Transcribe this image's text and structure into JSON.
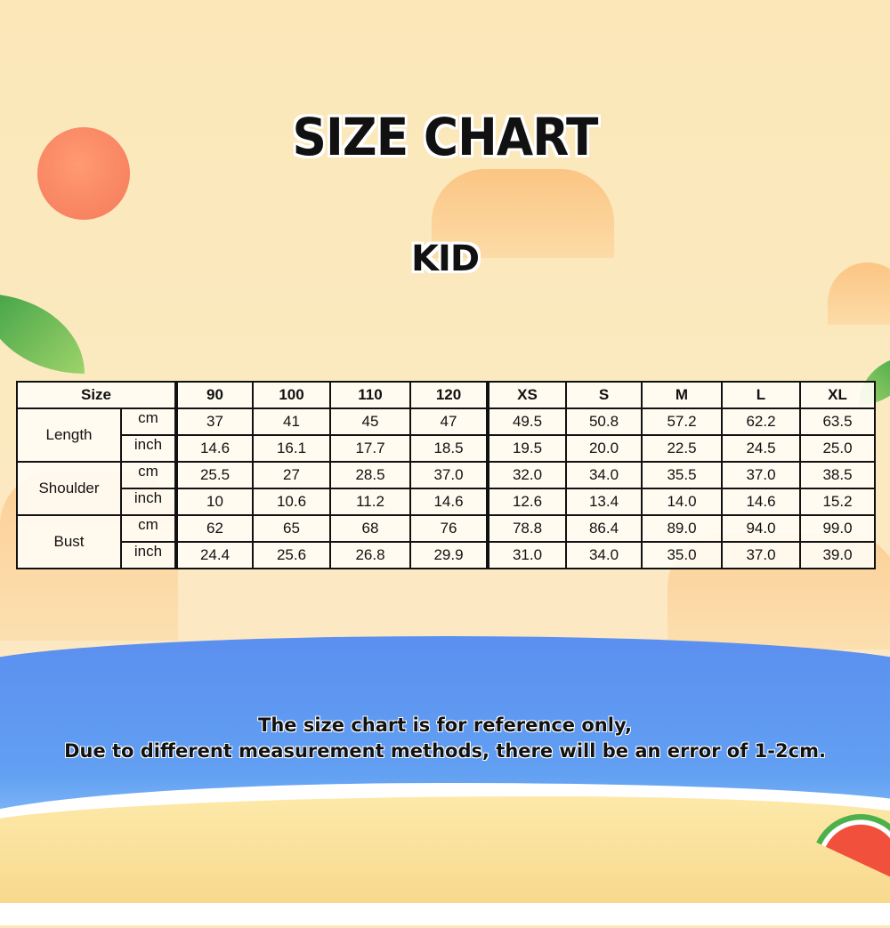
{
  "title": "SIZE CHART",
  "subtitle": "KID",
  "table": {
    "size_header": "Size",
    "sizes": [
      "90",
      "100",
      "110",
      "120",
      "XS",
      "S",
      "M",
      "L",
      "XL"
    ],
    "rows": [
      {
        "measure": "Length",
        "unit": "cm",
        "values": [
          "37",
          "41",
          "45",
          "47",
          "49.5",
          "50.8",
          "57.2",
          "62.2",
          "63.5"
        ]
      },
      {
        "measure": "Length",
        "unit": "inch",
        "values": [
          "14.6",
          "16.1",
          "17.7",
          "18.5",
          "19.5",
          "20.0",
          "22.5",
          "24.5",
          "25.0"
        ]
      },
      {
        "measure": "Shoulder",
        "unit": "cm",
        "values": [
          "25.5",
          "27",
          "28.5",
          "37.0",
          "32.0",
          "34.0",
          "35.5",
          "37.0",
          "38.5"
        ]
      },
      {
        "measure": "Shoulder",
        "unit": "inch",
        "values": [
          "10",
          "10.6",
          "11.2",
          "14.6",
          "12.6",
          "13.4",
          "14.0",
          "14.6",
          "15.2"
        ]
      },
      {
        "measure": "Bust",
        "unit": "cm",
        "values": [
          "62",
          "65",
          "68",
          "76",
          "78.8",
          "86.4",
          "89.0",
          "94.0",
          "99.0"
        ]
      },
      {
        "measure": "Bust",
        "unit": "inch",
        "values": [
          "24.4",
          "25.6",
          "26.8",
          "29.9",
          "31.0",
          "34.0",
          "35.0",
          "37.0",
          "39.0"
        ]
      }
    ]
  },
  "note": [
    "The size chart is for reference only,",
    "Due to different measurement methods, there will be an error of 1-2cm."
  ],
  "colors": {
    "background": "#fbe8bc",
    "sea": "#5b8ff0",
    "sun": "#f57a5a",
    "sand": "#f8d98e"
  }
}
